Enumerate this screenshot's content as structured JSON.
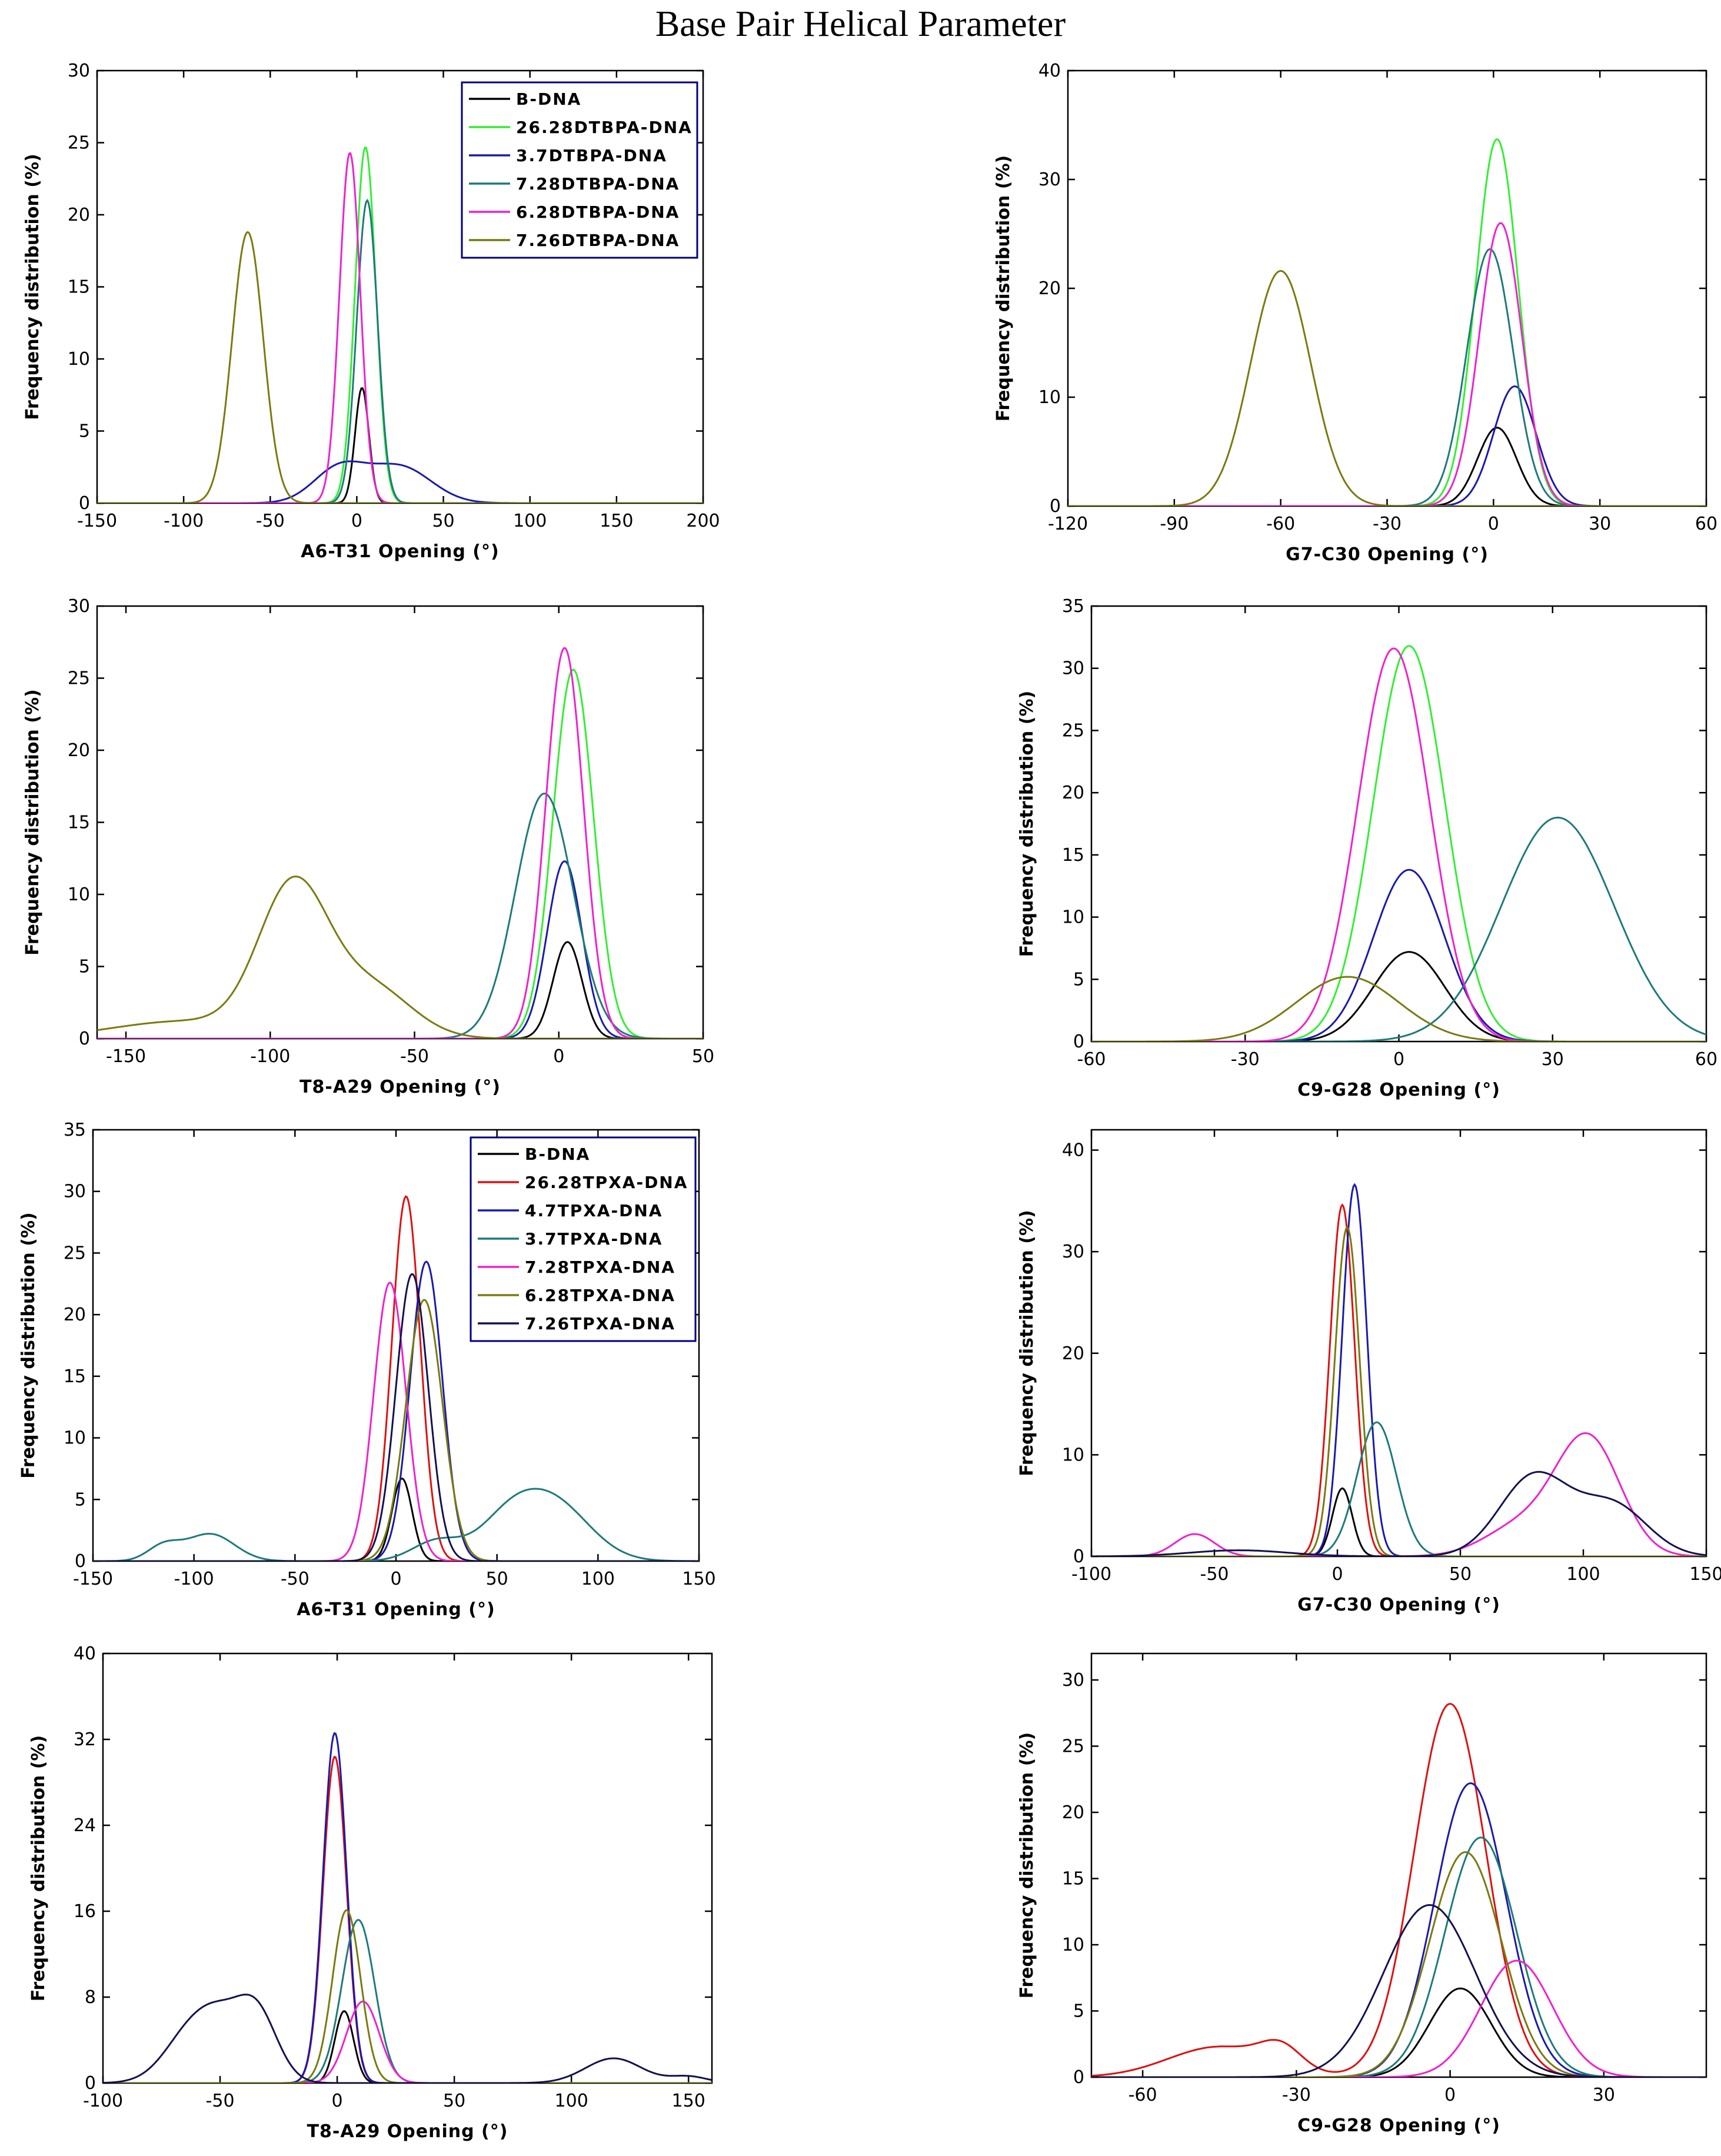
{
  "title": "Base Pair Helical Parameter",
  "colors": {
    "black": "#000000",
    "green": "#33ee33",
    "blue": "#1a1aaa",
    "teal": "#1e7a7a",
    "magenta": "#ee22cc",
    "olive": "#7a7a10",
    "red": "#dd1111",
    "navy": "#121250"
  },
  "legends": [
    {
      "panel": 0,
      "entries": [
        {
          "label": "B-DNA",
          "color": "black"
        },
        {
          "label": "26.28DTBPA-DNA",
          "color": "green"
        },
        {
          "label": "3.7DTBPA-DNA",
          "color": "blue"
        },
        {
          "label": "7.28DTBPA-DNA",
          "color": "teal"
        },
        {
          "label": "6.28DTBPA-DNA",
          "color": "magenta"
        },
        {
          "label": "7.26DTBPA-DNA",
          "color": "olive"
        }
      ]
    },
    {
      "panel": 4,
      "entries": [
        {
          "label": "B-DNA",
          "color": "black"
        },
        {
          "label": "26.28TPXA-DNA",
          "color": "red"
        },
        {
          "label": "4.7TPXA-DNA",
          "color": "blue"
        },
        {
          "label": "3.7TPXA-DNA",
          "color": "teal"
        },
        {
          "label": "7.28TPXA-DNA",
          "color": "magenta"
        },
        {
          "label": "6.28TPXA-DNA",
          "color": "olive"
        },
        {
          "label": "7.26TPXA-DNA",
          "color": "navy"
        }
      ]
    }
  ],
  "chart_data": [
    {
      "type": "line",
      "xlabel": "A6-T31 Opening (°)",
      "ylabel": "Frequency distribution (%)",
      "xlim": [
        -150,
        200
      ],
      "ylim": [
        0,
        30
      ],
      "xticks": [
        -150,
        -100,
        -50,
        0,
        50,
        100,
        150,
        200
      ],
      "yticks": [
        0,
        5,
        10,
        15,
        20,
        25,
        30
      ],
      "series": [
        {
          "name": "B-DNA",
          "color": "black",
          "peaks": [
            [
              3,
              8,
              4
            ]
          ]
        },
        {
          "name": "26.28DTBPA-DNA",
          "color": "green",
          "peaks": [
            [
              5,
              24.7,
              6
            ]
          ]
        },
        {
          "name": "3.7DTBPA-DNA",
          "color": "blue",
          "peaks": [
            [
              -10,
              2.4,
              15
            ],
            [
              25,
              2.5,
              18
            ]
          ]
        },
        {
          "name": "7.28DTBPA-DNA",
          "color": "teal",
          "peaks": [
            [
              6,
              21,
              6
            ]
          ]
        },
        {
          "name": "6.28DTBPA-DNA",
          "color": "magenta",
          "peaks": [
            [
              -4,
              24.3,
              6
            ]
          ]
        },
        {
          "name": "7.26DTBPA-DNA",
          "color": "olive",
          "peaks": [
            [
              -63,
              18.8,
              9
            ]
          ]
        }
      ]
    },
    {
      "type": "line",
      "xlabel": "G7-C30 Opening (°)",
      "ylabel": "Frequency distribution (%)",
      "xlim": [
        -120,
        60
      ],
      "ylim": [
        0,
        40
      ],
      "xticks": [
        -120,
        -90,
        -60,
        -30,
        0,
        30,
        60
      ],
      "yticks": [
        0,
        10,
        20,
        30,
        40
      ],
      "series": [
        {
          "name": "B-DNA",
          "color": "black",
          "peaks": [
            [
              1,
              7.2,
              5.5
            ]
          ]
        },
        {
          "name": "26.28DTBPA-DNA",
          "color": "green",
          "peaks": [
            [
              1,
              33.7,
              6
            ]
          ]
        },
        {
          "name": "3.7DTBPA-DNA",
          "color": "blue",
          "peaks": [
            [
              6,
              11,
              6
            ]
          ]
        },
        {
          "name": "7.28DTBPA-DNA",
          "color": "teal",
          "peaks": [
            [
              -1,
              23.6,
              6.5
            ]
          ]
        },
        {
          "name": "6.28DTBPA-DNA",
          "color": "magenta",
          "peaks": [
            [
              2,
              26,
              6
            ]
          ]
        },
        {
          "name": "7.26DTBPA-DNA",
          "color": "olive",
          "peaks": [
            [
              -60,
              21.6,
              8.5
            ]
          ]
        }
      ]
    },
    {
      "type": "line",
      "xlabel": "T8-A29 Opening (°)",
      "ylabel": "Frequency distribution (%)",
      "xlim": [
        -160,
        50
      ],
      "ylim": [
        0,
        30
      ],
      "xticks": [
        -150,
        -100,
        -50,
        0,
        50
      ],
      "yticks": [
        0,
        5,
        10,
        15,
        20,
        25,
        30
      ],
      "series": [
        {
          "name": "B-DNA",
          "color": "black",
          "peaks": [
            [
              3,
              6.7,
              5
            ]
          ]
        },
        {
          "name": "26.28DTBPA-DNA",
          "color": "green",
          "peaks": [
            [
              5,
              25.6,
              7
            ]
          ]
        },
        {
          "name": "3.7DTBPA-DNA",
          "color": "blue",
          "peaks": [
            [
              2,
              12.3,
              6
            ]
          ]
        },
        {
          "name": "7.28DTBPA-DNA",
          "color": "teal",
          "peaks": [
            [
              -5,
              17,
              10
            ]
          ]
        },
        {
          "name": "6.28DTBPA-DNA",
          "color": "magenta",
          "peaks": [
            [
              2,
              27.1,
              6.5
            ]
          ]
        },
        {
          "name": "7.26DTBPA-DNA",
          "color": "olive",
          "peaks": [
            [
              -92,
              10.3,
              12
            ],
            [
              -65,
              3.5,
              14
            ],
            [
              -130,
              1.2,
              25
            ]
          ]
        }
      ]
    },
    {
      "type": "line",
      "xlabel": "C9-G28 Opening (°)",
      "ylabel": "Frequency distribution (%)",
      "xlim": [
        -60,
        60
      ],
      "ylim": [
        0,
        35
      ],
      "xticks": [
        -60,
        -30,
        0,
        30,
        60
      ],
      "yticks": [
        0,
        5,
        10,
        15,
        20,
        25,
        30,
        35
      ],
      "series": [
        {
          "name": "B-DNA",
          "color": "black",
          "peaks": [
            [
              2,
              7.2,
              7
            ]
          ]
        },
        {
          "name": "26.28DTBPA-DNA",
          "color": "green",
          "peaks": [
            [
              2,
              31.8,
              7
            ]
          ]
        },
        {
          "name": "3.7DTBPA-DNA",
          "color": "blue",
          "peaks": [
            [
              2,
              13.8,
              7
            ]
          ]
        },
        {
          "name": "7.28DTBPA-DNA",
          "color": "teal",
          "peaks": [
            [
              31,
              18,
              11
            ]
          ]
        },
        {
          "name": "6.28DTBPA-DNA",
          "color": "magenta",
          "peaks": [
            [
              -1,
              31.6,
              7
            ]
          ]
        },
        {
          "name": "7.26DTBPA-DNA",
          "color": "olive",
          "peaks": [
            [
              -10,
              5.2,
              10
            ]
          ]
        }
      ]
    },
    {
      "type": "line",
      "xlabel": "A6-T31 Opening (°)",
      "ylabel": "Frequency distribution (%)",
      "xlim": [
        -150,
        150
      ],
      "ylim": [
        0,
        35
      ],
      "xticks": [
        -150,
        -100,
        -50,
        0,
        50,
        100,
        150
      ],
      "yticks": [
        0,
        5,
        10,
        15,
        20,
        25,
        30,
        35
      ],
      "series": [
        {
          "name": "B-DNA",
          "color": "black",
          "peaks": [
            [
              3,
              6.7,
              5
            ]
          ]
        },
        {
          "name": "26.28TPXA-DNA",
          "color": "red",
          "peaks": [
            [
              5,
              29.6,
              7
            ]
          ]
        },
        {
          "name": "4.7TPXA-DNA",
          "color": "blue",
          "peaks": [
            [
              15,
              24.3,
              8
            ]
          ]
        },
        {
          "name": "3.7TPXA-DNA",
          "color": "teal",
          "peaks": [
            [
              -92,
              2.2,
              12
            ],
            [
              -115,
              1.2,
              8
            ],
            [
              78,
              4.6,
              18
            ],
            [
              55,
              2.8,
              15
            ],
            [
              20,
              1.6,
              12
            ]
          ]
        },
        {
          "name": "7.28TPXA-DNA",
          "color": "magenta",
          "peaks": [
            [
              -3,
              22.6,
              8
            ]
          ]
        },
        {
          "name": "6.28TPXA-DNA",
          "color": "olive",
          "peaks": [
            [
              14,
              21.2,
              9
            ]
          ]
        },
        {
          "name": "7.26TPXA-DNA",
          "color": "navy",
          "peaks": [
            [
              8,
              23.3,
              8
            ]
          ]
        }
      ]
    },
    {
      "type": "line",
      "xlabel": "G7-C30 Opening (°)",
      "ylabel": "Frequency distribution (%)",
      "xlim": [
        -100,
        150
      ],
      "ylim": [
        0,
        42
      ],
      "xticks": [
        -100,
        -50,
        0,
        50,
        100,
        150
      ],
      "yticks": [
        0,
        10,
        20,
        30,
        40
      ],
      "series": [
        {
          "name": "B-DNA",
          "color": "black",
          "peaks": [
            [
              2,
              6.7,
              4
            ]
          ]
        },
        {
          "name": "26.28TPXA-DNA",
          "color": "red",
          "peaks": [
            [
              2,
              34.6,
              5
            ]
          ]
        },
        {
          "name": "4.7TPXA-DNA",
          "color": "blue",
          "peaks": [
            [
              7,
              36.6,
              5
            ]
          ]
        },
        {
          "name": "3.7TPXA-DNA",
          "color": "teal",
          "peaks": [
            [
              16,
              13.2,
              8
            ]
          ]
        },
        {
          "name": "7.28TPXA-DNA",
          "color": "magenta",
          "peaks": [
            [
              -58,
              2.2,
              8
            ],
            [
              102,
              11.5,
              13
            ],
            [
              75,
              3,
              15
            ]
          ]
        },
        {
          "name": "6.28TPXA-DNA",
          "color": "olive",
          "peaks": [
            [
              4,
              32.4,
              5
            ]
          ]
        },
        {
          "name": "7.26TPXA-DNA",
          "color": "navy",
          "peaks": [
            [
              80,
              7.9,
              14
            ],
            [
              112,
              5,
              14
            ],
            [
              -40,
              0.6,
              20
            ]
          ]
        }
      ]
    },
    {
      "type": "line",
      "xlabel": "T8-A29 Opening (°)",
      "ylabel": "Frequency distribution (%)",
      "xlim": [
        -100,
        160
      ],
      "ylim": [
        0,
        40
      ],
      "xticks": [
        -100,
        -50,
        0,
        50,
        100,
        150
      ],
      "yticks": [
        0,
        8,
        16,
        24,
        32,
        40
      ],
      "series": [
        {
          "name": "B-DNA",
          "color": "black",
          "peaks": [
            [
              3,
              6.7,
              4
            ]
          ]
        },
        {
          "name": "26.28TPXA-DNA",
          "color": "red",
          "peaks": [
            [
              -1,
              30.4,
              5
            ]
          ]
        },
        {
          "name": "4.7TPXA-DNA",
          "color": "blue",
          "peaks": [
            [
              -1,
              32.6,
              5
            ]
          ]
        },
        {
          "name": "3.7TPXA-DNA",
          "color": "teal",
          "peaks": [
            [
              9,
              15.2,
              7
            ]
          ]
        },
        {
          "name": "7.28TPXA-DNA",
          "color": "magenta",
          "peaks": [
            [
              11,
              7.6,
              7
            ]
          ]
        },
        {
          "name": "6.28TPXA-DNA",
          "color": "olive",
          "peaks": [
            [
              4,
              16.1,
              6
            ]
          ]
        },
        {
          "name": "7.26TPXA-DNA",
          "color": "navy",
          "peaks": [
            [
              -60,
              5.6,
              12
            ],
            [
              -35,
              6.9,
              9
            ],
            [
              -50,
              2,
              8
            ],
            [
              118,
              2.3,
              12
            ],
            [
              150,
              0.6,
              8
            ]
          ]
        }
      ]
    },
    {
      "type": "line",
      "xlabel": "C9-G28 Opening (°)",
      "ylabel": "Frequency distribution (%)",
      "xlim": [
        -70,
        50
      ],
      "ylim": [
        0,
        32
      ],
      "xticks": [
        -60,
        -30,
        0,
        30
      ],
      "yticks": [
        0,
        5,
        10,
        15,
        20,
        25,
        30
      ],
      "series": [
        {
          "name": "B-DNA",
          "color": "black",
          "peaks": [
            [
              2,
              6.7,
              6
            ]
          ]
        },
        {
          "name": "26.28TPXA-DNA",
          "color": "red",
          "peaks": [
            [
              0,
              28.2,
              7
            ],
            [
              -45,
              2.3,
              10
            ],
            [
              -33,
              1.6,
              4
            ]
          ]
        },
        {
          "name": "4.7TPXA-DNA",
          "color": "blue",
          "peaks": [
            [
              4,
              22.2,
              7
            ]
          ]
        },
        {
          "name": "3.7TPXA-DNA",
          "color": "teal",
          "peaks": [
            [
              6,
              18.1,
              7
            ]
          ]
        },
        {
          "name": "7.28TPXA-DNA",
          "color": "magenta",
          "peaks": [
            [
              13,
              8.8,
              7
            ]
          ]
        },
        {
          "name": "6.28TPXA-DNA",
          "color": "olive",
          "peaks": [
            [
              3,
              17,
              7
            ]
          ]
        },
        {
          "name": "7.26TPXA-DNA",
          "color": "navy",
          "peaks": [
            [
              -4,
              13,
              9
            ]
          ]
        }
      ]
    }
  ]
}
